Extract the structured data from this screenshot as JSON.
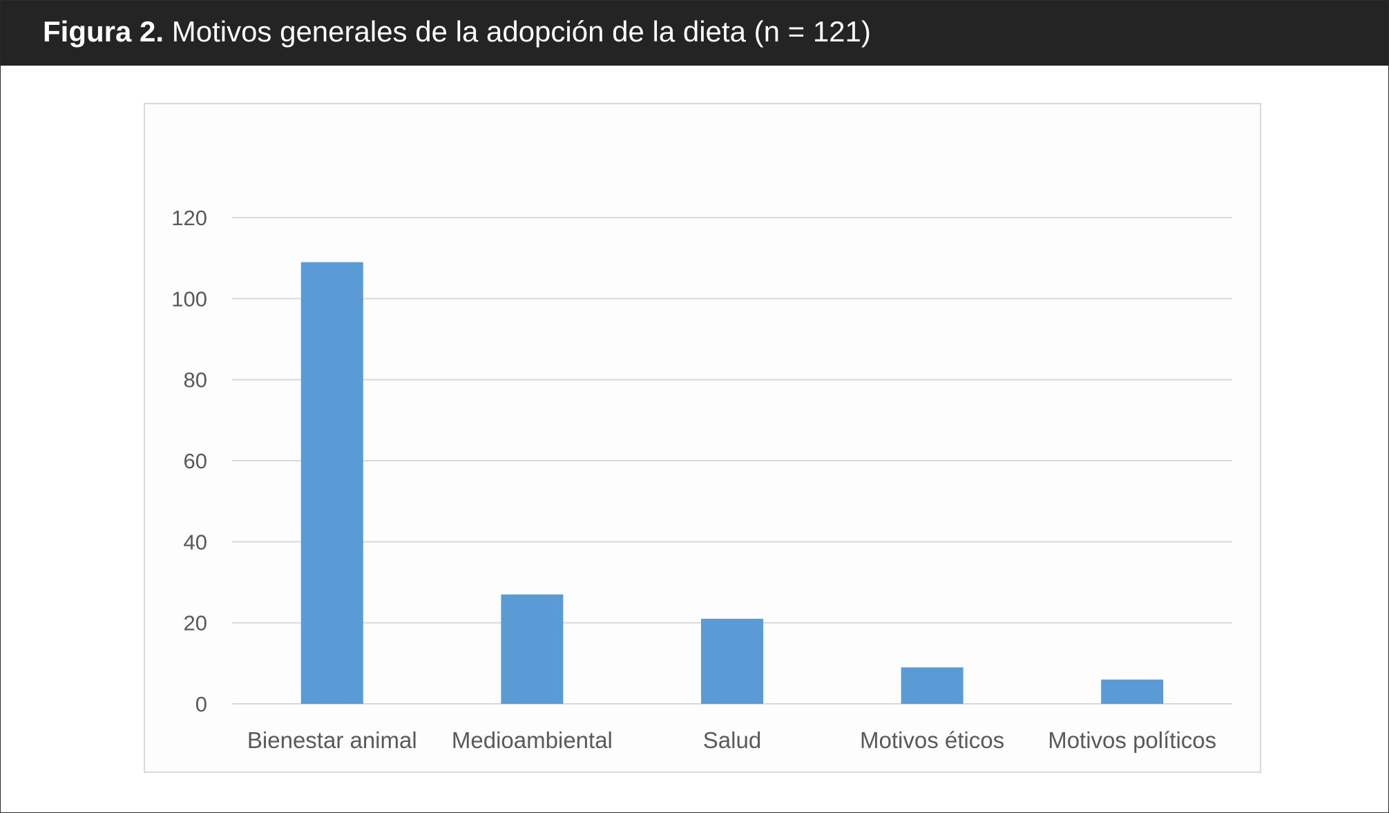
{
  "figure": {
    "label": "Figura 2.",
    "title": "Motivos generales de la adopción de la dieta (n = 121)"
  },
  "chart_data": {
    "type": "bar",
    "categories": [
      "Bienestar animal",
      "Medioambiental",
      "Salud",
      "Motivos éticos",
      "Motivos políticos"
    ],
    "values": [
      109,
      27,
      21,
      9,
      6
    ],
    "ylim": [
      0,
      120
    ],
    "yticks": [
      0,
      20,
      40,
      60,
      80,
      100,
      120
    ],
    "grid": true,
    "legend": "none",
    "bar_color": "#5b9bd5",
    "grid_color": "#d9d9d9",
    "tick_color": "#595959"
  }
}
